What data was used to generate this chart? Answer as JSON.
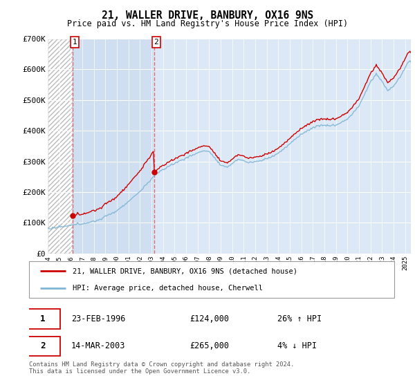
{
  "title": "21, WALLER DRIVE, BANBURY, OX16 9NS",
  "subtitle": "Price paid vs. HM Land Registry's House Price Index (HPI)",
  "sale1_date": "23-FEB-1996",
  "sale1_price": 124000,
  "sale1_hpi": "26% ↑ HPI",
  "sale1_year": 1996.13,
  "sale2_date": "14-MAR-2003",
  "sale2_price": 265000,
  "sale2_hpi": "4% ↓ HPI",
  "sale2_year": 2003.21,
  "legend_line1": "21, WALLER DRIVE, BANBURY, OX16 9NS (detached house)",
  "legend_line2": "HPI: Average price, detached house, Cherwell",
  "footer": "Contains HM Land Registry data © Crown copyright and database right 2024.\nThis data is licensed under the Open Government Licence v3.0.",
  "ylim": [
    0,
    700000
  ],
  "yticks": [
    0,
    100000,
    200000,
    300000,
    400000,
    500000,
    600000,
    700000
  ],
  "ytick_labels": [
    "£0",
    "£100K",
    "£200K",
    "£300K",
    "£400K",
    "£500K",
    "£600K",
    "£700K"
  ],
  "xlim_start": 1994.0,
  "xlim_end": 2025.5,
  "hpi_color": "#7eb5d6",
  "price_color": "#cc0000",
  "dashed_color": "#e06060",
  "background_color": "#ffffff",
  "plot_bg_color": "#dce8f5",
  "hatch_bg": "#ffffff"
}
